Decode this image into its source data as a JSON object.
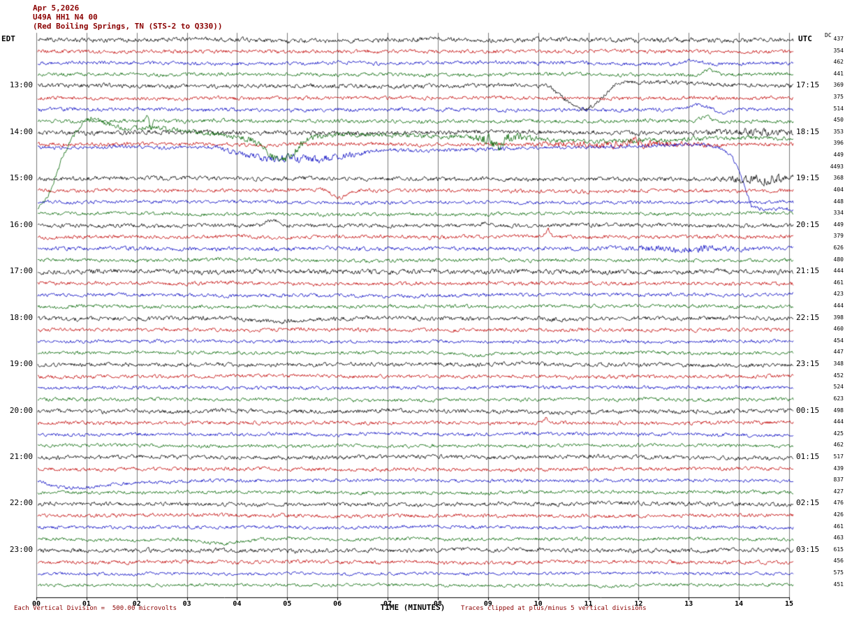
{
  "header": {
    "date": "Apr 5,2026",
    "station": "U49A HH1 N4 00",
    "location": "(Red Boiling Springs, TN (STS-2 to Q330))"
  },
  "left_axis": {
    "label": "EDT"
  },
  "right_axis": {
    "label": "UTC"
  },
  "dc_column": {
    "label": "DC"
  },
  "x_axis": {
    "label": "TIME (MINUTES)",
    "ticks": [
      "00",
      "01",
      "02",
      "03",
      "04",
      "05",
      "06",
      "07",
      "08",
      "09",
      "10",
      "11",
      "12",
      "13",
      "14",
      "15"
    ]
  },
  "footer": {
    "left": "Each Vertical Division =  500.00 microvolts",
    "right": "Traces clipped at plus/minus 5 vertical divisions"
  },
  "chart_data": {
    "type": "line",
    "title": "Webicorder / helicorder display, station U49A HH1 N4 00, Red Boiling Springs TN",
    "xlabel": "TIME (MINUTES)",
    "x_range_minutes": [
      0,
      15
    ],
    "row_duration_minutes": 15,
    "rows_per_hour": 4,
    "grid_color": "#7a7a7a",
    "trace_colors": {
      "black": "#000000",
      "red": "#c00000",
      "blue": "#0000c0",
      "green": "#006400"
    },
    "description": "48 consecutive 15-minute seismogram traces (color cycle black/red/blue/green). Each row: baseline noise amplitude in px, DC offset value from right column, and notable waveform events (offsets in px, times in minutes).",
    "rows": [
      {
        "color": "black",
        "dc": 437,
        "amp": 2.4
      },
      {
        "color": "red",
        "dc": 354,
        "amp": 2.0
      },
      {
        "color": "blue",
        "dc": 462,
        "amp": 1.9,
        "events": [
          {
            "type": "bump",
            "t": 13.1,
            "a": 5,
            "w": 0.45
          }
        ]
      },
      {
        "color": "green",
        "dc": 441,
        "amp": 1.9,
        "events": [
          {
            "type": "bump",
            "t": 13.4,
            "a": 7,
            "w": 0.3
          }
        ]
      },
      {
        "color": "black",
        "dc": 369,
        "edt": "13:00",
        "utc": "17:15",
        "amp": 2.3,
        "events": [
          {
            "type": "path",
            "pts": [
              [
                10.2,
                0
              ],
              [
                10.5,
                -18
              ],
              [
                10.7,
                -30
              ],
              [
                10.95,
                -34
              ],
              [
                11.15,
                -26
              ],
              [
                11.4,
                -8
              ],
              [
                11.55,
                5
              ],
              [
                12.1,
                7
              ],
              [
                12.7,
                6
              ],
              [
                13.4,
                3
              ],
              [
                14.2,
                1
              ],
              [
                15.2,
                0
              ]
            ]
          }
        ]
      },
      {
        "color": "red",
        "dc": 375,
        "amp": 2.0
      },
      {
        "color": "blue",
        "dc": 514,
        "amp": 2.0,
        "events": [
          {
            "type": "bump",
            "t": 13.15,
            "a": 6,
            "w": 0.35
          },
          {
            "type": "bump",
            "t": 13.7,
            "a": -6,
            "w": 0.3
          }
        ]
      },
      {
        "color": "green",
        "dc": 450,
        "amp": 2.0,
        "events": [
          {
            "type": "spike",
            "t": 2.22,
            "a": 13,
            "w": 0.07
          },
          {
            "type": "spike",
            "t": 2.27,
            "a": -13,
            "w": 0.07
          },
          {
            "type": "bump",
            "t": 13.35,
            "a": 8,
            "w": 0.25
          }
        ]
      },
      {
        "color": "black",
        "dc": 353,
        "edt": "14:00",
        "utc": "18:15",
        "amp": 2.4,
        "events": [
          {
            "type": "burst",
            "t": 14.3,
            "a": 2,
            "w": 1.4
          }
        ]
      },
      {
        "color": "red",
        "dc": 396,
        "amp": 2.1,
        "events": [
          {
            "type": "burst",
            "t": 11.5,
            "a": 2.5,
            "w": 2.5
          },
          {
            "type": "bump",
            "t": 11.9,
            "a": 5,
            "w": 0.2
          }
        ]
      },
      {
        "color": "blue",
        "dc": 449,
        "amp": 2.0,
        "events": [
          {
            "type": "path",
            "pts": [
              [
                0,
                12
              ],
              [
                3.6,
                12
              ],
              [
                4.1,
                4
              ],
              [
                4.5,
                -2
              ],
              [
                5.8,
                -4
              ],
              [
                6.3,
                2
              ],
              [
                6.8,
                8
              ],
              [
                8.0,
                9
              ],
              [
                9.5,
                11
              ],
              [
                11.0,
                13
              ],
              [
                12.5,
                15
              ],
              [
                13.3,
                16
              ],
              [
                13.6,
                12
              ],
              [
                13.85,
                0
              ],
              [
                14.05,
                -30
              ],
              [
                14.25,
                -74
              ],
              [
                14.5,
                -77
              ],
              [
                15.2,
                -77
              ]
            ]
          },
          {
            "type": "burst",
            "t": 5.2,
            "a": 2.5,
            "w": 2.0
          }
        ]
      },
      {
        "color": "green",
        "dc": 4493,
        "amp": 2.6,
        "events": [
          {
            "type": "path",
            "pts": [
              [
                0,
                -60
              ],
              [
                0.25,
                -40
              ],
              [
                0.55,
                20
              ],
              [
                0.85,
                58
              ],
              [
                1.1,
                70
              ],
              [
                1.35,
                64
              ],
              [
                1.7,
                56
              ],
              [
                2.2,
                57
              ],
              [
                2.9,
                54
              ],
              [
                3.6,
                48
              ],
              [
                4.3,
                40
              ],
              [
                4.65,
                18
              ],
              [
                4.85,
                10
              ],
              [
                5.05,
                14
              ],
              [
                5.35,
                40
              ],
              [
                5.8,
                46
              ],
              [
                6.6,
                47
              ],
              [
                7.5,
                45
              ],
              [
                8.6,
                44
              ],
              [
                9.05,
                40
              ],
              [
                9.2,
                28
              ],
              [
                9.35,
                42
              ],
              [
                9.6,
                44
              ],
              [
                10.2,
                40
              ],
              [
                11.0,
                37
              ],
              [
                12.0,
                39
              ],
              [
                13.0,
                41
              ],
              [
                14.2,
                42
              ],
              [
                15.2,
                42
              ]
            ]
          },
          {
            "type": "burst",
            "t": 9.2,
            "a": 4,
            "w": 0.8
          },
          {
            "type": "burst",
            "t": 4.9,
            "a": 2,
            "w": 1.2
          }
        ]
      },
      {
        "color": "black",
        "dc": 368,
        "edt": "15:00",
        "utc": "19:15",
        "amp": 2.3,
        "events": [
          {
            "type": "burst",
            "t": 14.5,
            "a": 3.5,
            "w": 1.2
          }
        ]
      },
      {
        "color": "red",
        "dc": 404,
        "amp": 2.0,
        "events": [
          {
            "type": "bump",
            "t": 6.05,
            "a": -11,
            "w": 0.35
          }
        ]
      },
      {
        "color": "blue",
        "dc": 448,
        "amp": 1.8
      },
      {
        "color": "green",
        "dc": 334,
        "amp": 1.8
      },
      {
        "color": "black",
        "dc": 449,
        "edt": "16:00",
        "utc": "20:15",
        "amp": 2.2,
        "events": [
          {
            "type": "bump",
            "t": 4.7,
            "a": 8,
            "w": 0.25
          },
          {
            "type": "bump",
            "t": 9.0,
            "a": 4,
            "w": 0.2
          }
        ]
      },
      {
        "color": "red",
        "dc": 379,
        "amp": 2.0,
        "events": [
          {
            "type": "spike",
            "t": 10.2,
            "a": 10,
            "w": 0.1
          }
        ]
      },
      {
        "color": "blue",
        "dc": 626,
        "amp": 2.1,
        "events": [
          {
            "type": "burst",
            "t": 12.9,
            "a": 2,
            "w": 1.6
          }
        ]
      },
      {
        "color": "green",
        "dc": 480,
        "amp": 1.9
      },
      {
        "color": "black",
        "dc": 444,
        "edt": "17:00",
        "utc": "21:15",
        "amp": 2.7
      },
      {
        "color": "red",
        "dc": 461,
        "amp": 2.0
      },
      {
        "color": "blue",
        "dc": 423,
        "amp": 1.9
      },
      {
        "color": "green",
        "dc": 444,
        "amp": 1.9
      },
      {
        "color": "black",
        "dc": 398,
        "edt": "18:00",
        "utc": "22:15",
        "amp": 2.3,
        "events": [
          {
            "type": "bump",
            "t": 4.8,
            "a": -6,
            "w": 1.3
          }
        ]
      },
      {
        "color": "red",
        "dc": 460,
        "amp": 2.0
      },
      {
        "color": "blue",
        "dc": 454,
        "amp": 1.8
      },
      {
        "color": "green",
        "dc": 447,
        "amp": 1.8,
        "events": [
          {
            "type": "bump",
            "t": 8.75,
            "a": -5,
            "w": 0.5
          }
        ]
      },
      {
        "color": "black",
        "dc": 348,
        "edt": "19:00",
        "utc": "23:15",
        "amp": 2.2
      },
      {
        "color": "red",
        "dc": 452,
        "amp": 2.0
      },
      {
        "color": "blue",
        "dc": 524,
        "amp": 1.9
      },
      {
        "color": "green",
        "dc": 623,
        "amp": 1.9
      },
      {
        "color": "black",
        "dc": 498,
        "edt": "20:00",
        "utc": "00:15",
        "amp": 2.3
      },
      {
        "color": "red",
        "dc": 444,
        "amp": 2.0,
        "events": [
          {
            "type": "spike",
            "t": 10.15,
            "a": 7,
            "w": 0.12
          }
        ]
      },
      {
        "color": "blue",
        "dc": 425,
        "amp": 1.8
      },
      {
        "color": "green",
        "dc": 462,
        "amp": 1.8
      },
      {
        "color": "black",
        "dc": 517,
        "edt": "21:00",
        "utc": "01:15",
        "amp": 2.2
      },
      {
        "color": "red",
        "dc": 439,
        "amp": 2.0
      },
      {
        "color": "blue",
        "dc": 837,
        "amp": 1.8,
        "events": [
          {
            "type": "path",
            "pts": [
              [
                0,
                0
              ],
              [
                0.2,
                -3
              ],
              [
                0.45,
                -8
              ],
              [
                0.8,
                -9
              ],
              [
                1.3,
                -7
              ],
              [
                2.0,
                -3
              ],
              [
                2.8,
                -1
              ],
              [
                3.5,
                0
              ],
              [
                15.2,
                0
              ]
            ]
          }
        ]
      },
      {
        "color": "green",
        "dc": 427,
        "amp": 1.8
      },
      {
        "color": "black",
        "dc": 476,
        "edt": "22:00",
        "utc": "02:15",
        "amp": 2.2
      },
      {
        "color": "red",
        "dc": 426,
        "amp": 2.0
      },
      {
        "color": "blue",
        "dc": 461,
        "amp": 1.8
      },
      {
        "color": "green",
        "dc": 463,
        "amp": 1.8,
        "events": [
          {
            "type": "path",
            "pts": [
              [
                2.9,
                0
              ],
              [
                3.3,
                -4
              ],
              [
                3.7,
                -6
              ],
              [
                4.1,
                -3
              ],
              [
                4.5,
                0
              ],
              [
                15.2,
                0
              ]
            ]
          }
        ]
      },
      {
        "color": "black",
        "dc": 615,
        "edt": "23:00",
        "utc": "03:15",
        "amp": 2.3
      },
      {
        "color": "red",
        "dc": 456,
        "amp": 2.0
      },
      {
        "color": "blue",
        "dc": 575,
        "amp": 1.6
      },
      {
        "color": "green",
        "dc": 451,
        "amp": 1.6
      }
    ]
  }
}
